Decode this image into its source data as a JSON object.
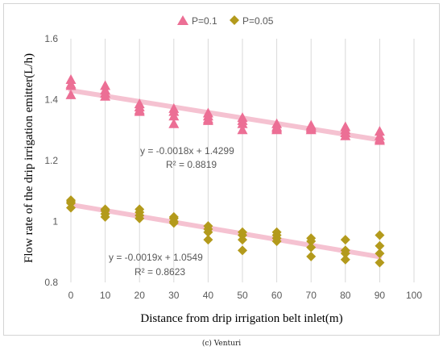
{
  "caption": "(c) Venturi",
  "chart_data": {
    "type": "scatter",
    "title": "",
    "xlabel": "Distance from drip irrigation belt inlet(m)",
    "ylabel": "Flow rate of the drip irrigation emitter(L/h)",
    "xlim": [
      0,
      100
    ],
    "ylim": [
      0.8,
      1.6
    ],
    "x_ticks": [
      0,
      10,
      20,
      30,
      40,
      50,
      60,
      70,
      80,
      90,
      100
    ],
    "y_ticks": [
      0.8,
      1,
      1.2,
      1.4,
      1.6
    ],
    "x_tick_labels": [
      "0",
      "10",
      "20",
      "30",
      "40",
      "50",
      "60",
      "70",
      "80",
      "90",
      "100"
    ],
    "y_tick_labels": [
      "0.8",
      "1",
      "1.2",
      "1.4",
      "1.6"
    ],
    "grid": "vertical",
    "legend_position": "top",
    "series": [
      {
        "name": "P=0.1",
        "marker": "triangle",
        "color": "#ec6f95",
        "points": [
          [
            0,
            1.465
          ],
          [
            0,
            1.45
          ],
          [
            0,
            1.445
          ],
          [
            0,
            1.415
          ],
          [
            10,
            1.445
          ],
          [
            10,
            1.43
          ],
          [
            10,
            1.42
          ],
          [
            10,
            1.41
          ],
          [
            20,
            1.385
          ],
          [
            20,
            1.375
          ],
          [
            20,
            1.365
          ],
          [
            20,
            1.36
          ],
          [
            30,
            1.37
          ],
          [
            30,
            1.36
          ],
          [
            30,
            1.345
          ],
          [
            30,
            1.32
          ],
          [
            40,
            1.355
          ],
          [
            40,
            1.345
          ],
          [
            40,
            1.335
          ],
          [
            40,
            1.33
          ],
          [
            50,
            1.34
          ],
          [
            50,
            1.33
          ],
          [
            50,
            1.32
          ],
          [
            50,
            1.3
          ],
          [
            60,
            1.32
          ],
          [
            60,
            1.31
          ],
          [
            60,
            1.305
          ],
          [
            60,
            1.3
          ],
          [
            70,
            1.315
          ],
          [
            70,
            1.31
          ],
          [
            70,
            1.305
          ],
          [
            70,
            1.3
          ],
          [
            80,
            1.31
          ],
          [
            80,
            1.3
          ],
          [
            80,
            1.29
          ],
          [
            80,
            1.28
          ],
          [
            90,
            1.295
          ],
          [
            90,
            1.28
          ],
          [
            90,
            1.27
          ],
          [
            90,
            1.265
          ]
        ],
        "trendline": {
          "slope": -0.0018,
          "intercept": 1.4299,
          "color": "#f4b8ca",
          "equation": "y = -0.0018x + 1.4299",
          "r2": "R² = 0.8819"
        }
      },
      {
        "name": "P=0.05",
        "marker": "diamond",
        "color": "#b39a1c",
        "points": [
          [
            0,
            1.07
          ],
          [
            0,
            1.065
          ],
          [
            0,
            1.06
          ],
          [
            0,
            1.045
          ],
          [
            10,
            1.04
          ],
          [
            10,
            1.035
          ],
          [
            10,
            1.025
          ],
          [
            10,
            1.015
          ],
          [
            20,
            1.04
          ],
          [
            20,
            1.03
          ],
          [
            20,
            1.02
          ],
          [
            20,
            1.01
          ],
          [
            30,
            1.015
          ],
          [
            30,
            1.01
          ],
          [
            30,
            1.0
          ],
          [
            30,
            0.995
          ],
          [
            40,
            0.985
          ],
          [
            40,
            0.975
          ],
          [
            40,
            0.965
          ],
          [
            40,
            0.94
          ],
          [
            50,
            0.965
          ],
          [
            50,
            0.955
          ],
          [
            50,
            0.94
          ],
          [
            50,
            0.905
          ],
          [
            60,
            0.965
          ],
          [
            60,
            0.955
          ],
          [
            60,
            0.945
          ],
          [
            60,
            0.935
          ],
          [
            70,
            0.945
          ],
          [
            70,
            0.935
          ],
          [
            70,
            0.915
          ],
          [
            70,
            0.885
          ],
          [
            80,
            0.94
          ],
          [
            80,
            0.905
          ],
          [
            80,
            0.895
          ],
          [
            80,
            0.875
          ],
          [
            90,
            0.955
          ],
          [
            90,
            0.92
          ],
          [
            90,
            0.895
          ],
          [
            90,
            0.865
          ]
        ],
        "trendline": {
          "slope": -0.0019,
          "intercept": 1.0549,
          "color": "#f4b8ca",
          "equation": "y = -0.0019x + 1.0549",
          "r2": "R² = 0.8623"
        }
      }
    ]
  }
}
